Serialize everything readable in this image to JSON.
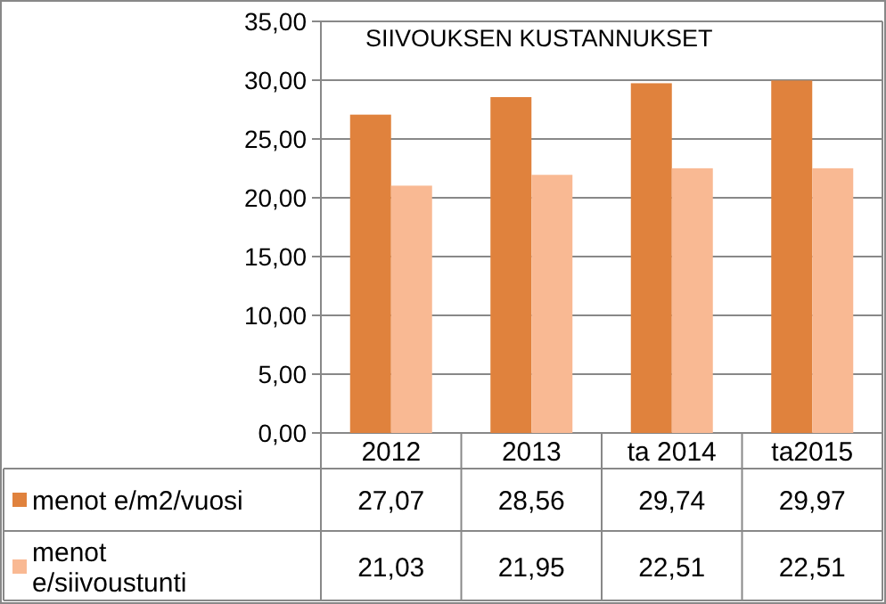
{
  "chart_data": {
    "type": "bar",
    "title": "SIIVOUKSEN KUSTANNUKSET",
    "categories": [
      "2012",
      "2013",
      "ta 2014",
      "ta2015"
    ],
    "series": [
      {
        "name": "menot e/m2/vuosi",
        "color": "#e0823d",
        "values": [
          27.07,
          28.56,
          29.74,
          29.97
        ],
        "value_labels": [
          "27,07",
          "28,56",
          "29,74",
          "29,97"
        ]
      },
      {
        "name": "menot e/siivoustunti",
        "color": "#f9b993",
        "values": [
          21.03,
          21.95,
          22.51,
          22.51
        ],
        "value_labels": [
          "21,03",
          "21,95",
          "22,51",
          "22,51"
        ]
      }
    ],
    "ylim": [
      0,
      35
    ],
    "yticks": [
      {
        "value": 0,
        "label": "0,00"
      },
      {
        "value": 5,
        "label": "5,00"
      },
      {
        "value": 10,
        "label": "10,00"
      },
      {
        "value": 15,
        "label": "15,00"
      },
      {
        "value": 20,
        "label": "20,00"
      },
      {
        "value": 25,
        "label": "25,00"
      },
      {
        "value": 30,
        "label": "30,00"
      },
      {
        "value": 35,
        "label": "35,00"
      }
    ],
    "grid": "y",
    "legend": "bottom"
  }
}
